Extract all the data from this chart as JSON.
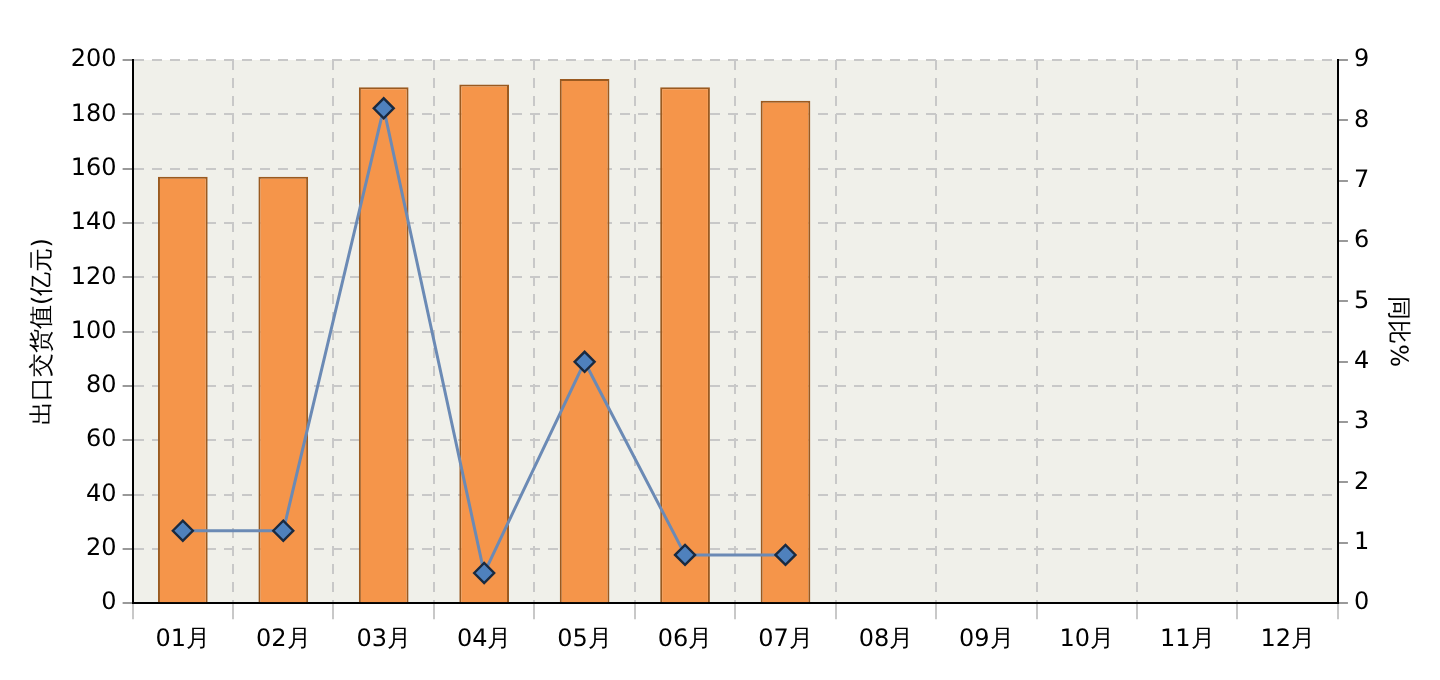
{
  "chart_data": {
    "type": "bar",
    "categories": [
      "01月",
      "02月",
      "03月",
      "04月",
      "05月",
      "06月",
      "07月",
      "08月",
      "09月",
      "10月",
      "11月",
      "12月"
    ],
    "series": [
      {
        "color": "#f5954a",
        "values": [
          157,
          157,
          190,
          191,
          193,
          190,
          185,
          null,
          null,
          null,
          null,
          null
        ]
      },
      {
        "type": "line",
        "axis": "y2",
        "color": "#6b8ab5",
        "marker": "diamond",
        "values": [
          1.2,
          1.2,
          8.2,
          0.5,
          4.0,
          0.8,
          0.8,
          null,
          null,
          null,
          null,
          null
        ]
      }
    ],
    "ylabel": "出口交货值(亿元)",
    "y2label": "同比%",
    "ylim": [
      0,
      200
    ],
    "yticks": [
      0,
      20,
      40,
      60,
      80,
      100,
      120,
      140,
      160,
      180,
      200
    ],
    "y2lim": [
      0,
      9
    ],
    "y2ticks": [
      0,
      1,
      2,
      3,
      4,
      5,
      6,
      7,
      8,
      9
    ],
    "grid": true,
    "legend": false
  }
}
